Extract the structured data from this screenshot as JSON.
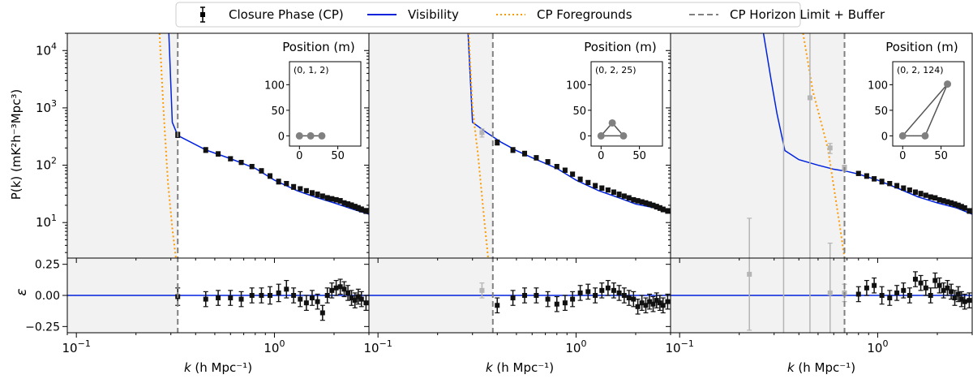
{
  "legend": {
    "placement": "top-center",
    "entries": [
      {
        "key": "cp",
        "label": "Closure Phase (CP)",
        "color": "#000000",
        "style": "square-errorbar"
      },
      {
        "key": "vis",
        "label": "Visibility",
        "color": "#0022dd",
        "style": "solid"
      },
      {
        "key": "fg",
        "label": "CP Foregrounds",
        "color": "#ff9900",
        "style": "dotted"
      },
      {
        "key": "hor",
        "label": "CP Horizon Limit + Buffer",
        "color": "#808080",
        "style": "dashed"
      }
    ]
  },
  "axes": {
    "xlabel_prefix": "k",
    "xlabel_suffix": "(h Mpc⁻¹)",
    "ylabel_top": "P(k) (mK²h⁻³Mpc³)",
    "ylabel_bottom": "ε",
    "x_range": [
      0.09,
      3.0
    ],
    "x_scale": "log",
    "y_top_range": [
      2.4,
      20000
    ],
    "y_top_scale": "log",
    "y_bottom_range": [
      -0.3,
      0.3
    ],
    "x_ticks": [
      {
        "v": 0.1,
        "base": "10",
        "exp": "−1"
      },
      {
        "v": 1,
        "base": "10",
        "exp": "0"
      }
    ],
    "y_top_ticks": [
      {
        "v": 10,
        "base": "10",
        "exp": "1"
      },
      {
        "v": 100,
        "base": "10",
        "exp": "2"
      },
      {
        "v": 1000,
        "base": "10",
        "exp": "3"
      },
      {
        "v": 10000,
        "base": "10",
        "exp": "4"
      }
    ],
    "y_bottom_ticks": [
      {
        "v": 0.25,
        "label": "0.25"
      },
      {
        "v": 0,
        "label": "0.00"
      },
      {
        "v": -0.25,
        "label": "−0.25"
      }
    ]
  },
  "chart_data": [
    {
      "type": "line",
      "inset": {
        "title": "Position (m)",
        "label": "(0, 1, 2)",
        "xticks": [
          "0",
          "50"
        ],
        "yticks": [
          "0",
          "50",
          "100"
        ],
        "points": [
          [
            0,
            0
          ],
          [
            14.6,
            0
          ],
          [
            29.2,
            0
          ]
        ],
        "closed": false
      },
      "horizon": 0.325,
      "visibility": [
        [
          0.293,
          20000
        ],
        [
          0.305,
          560
        ],
        [
          0.325,
          330
        ],
        [
          0.45,
          185
        ],
        [
          0.6,
          130
        ],
        [
          0.8,
          88
        ],
        [
          1.0,
          55
        ],
        [
          1.3,
          36
        ],
        [
          1.6,
          28
        ],
        [
          2.0,
          22
        ],
        [
          2.5,
          17
        ],
        [
          3.0,
          14
        ]
      ],
      "foreground": [
        [
          0.263,
          20000
        ],
        [
          0.275,
          1000
        ],
        [
          0.29,
          50
        ],
        [
          0.305,
          8
        ],
        [
          0.318,
          2.4
        ]
      ],
      "cp_points": [
        {
          "k": 0.325,
          "p": 340,
          "dp": 35,
          "e": -0.01,
          "de": 0.07,
          "gray": false
        },
        {
          "k": 0.45,
          "p": 185,
          "dp": 18,
          "e": -0.03,
          "de": 0.06,
          "gray": false
        },
        {
          "k": 0.52,
          "p": 158,
          "dp": 14,
          "e": -0.02,
          "de": 0.06,
          "gray": false
        },
        {
          "k": 0.6,
          "p": 130,
          "dp": 11,
          "e": -0.02,
          "de": 0.06,
          "gray": false
        },
        {
          "k": 0.68,
          "p": 112,
          "dp": 9,
          "e": -0.03,
          "de": 0.06,
          "gray": false
        },
        {
          "k": 0.77,
          "p": 95,
          "dp": 8,
          "e": 0.0,
          "de": 0.06,
          "gray": false
        },
        {
          "k": 0.86,
          "p": 80,
          "dp": 7,
          "e": 0.0,
          "de": 0.06,
          "gray": false
        },
        {
          "k": 0.95,
          "p": 65,
          "dp": 6,
          "e": 0.0,
          "de": 0.07,
          "gray": false
        },
        {
          "k": 1.05,
          "p": 52,
          "dp": 5,
          "e": 0.02,
          "de": 0.07,
          "gray": false
        },
        {
          "k": 1.15,
          "p": 48,
          "dp": 4,
          "e": 0.05,
          "de": 0.07,
          "gray": false
        },
        {
          "k": 1.25,
          "p": 42,
          "dp": 4,
          "e": 0.0,
          "de": 0.06,
          "gray": false
        },
        {
          "k": 1.35,
          "p": 39,
          "dp": 3,
          "e": -0.03,
          "de": 0.06,
          "gray": false
        },
        {
          "k": 1.45,
          "p": 36,
          "dp": 3,
          "e": -0.06,
          "de": 0.06,
          "gray": false
        },
        {
          "k": 1.55,
          "p": 33,
          "dp": 3,
          "e": -0.02,
          "de": 0.06,
          "gray": false
        },
        {
          "k": 1.65,
          "p": 31,
          "dp": 3,
          "e": -0.05,
          "de": 0.06,
          "gray": false
        },
        {
          "k": 1.75,
          "p": 29,
          "dp": 2.5,
          "e": -0.14,
          "de": 0.06,
          "gray": false
        },
        {
          "k": 1.85,
          "p": 27,
          "dp": 2.5,
          "e": 0.0,
          "de": 0.06,
          "gray": false
        },
        {
          "k": 1.95,
          "p": 26,
          "dp": 2.3,
          "e": 0.04,
          "de": 0.06,
          "gray": false
        },
        {
          "k": 2.05,
          "p": 25,
          "dp": 2.2,
          "e": 0.06,
          "de": 0.06,
          "gray": false
        },
        {
          "k": 2.15,
          "p": 24,
          "dp": 2.2,
          "e": 0.07,
          "de": 0.06,
          "gray": false
        },
        {
          "k": 2.25,
          "p": 22,
          "dp": 2,
          "e": 0.05,
          "de": 0.06,
          "gray": false
        },
        {
          "k": 2.35,
          "p": 21,
          "dp": 2,
          "e": 0.02,
          "de": 0.06,
          "gray": false
        },
        {
          "k": 2.45,
          "p": 20,
          "dp": 2,
          "e": -0.02,
          "de": 0.06,
          "gray": false
        },
        {
          "k": 2.55,
          "p": 19,
          "dp": 1.8,
          "e": -0.04,
          "de": 0.06,
          "gray": false
        },
        {
          "k": 2.65,
          "p": 18,
          "dp": 1.8,
          "e": -0.01,
          "de": 0.06,
          "gray": false
        },
        {
          "k": 2.75,
          "p": 17,
          "dp": 1.7,
          "e": -0.03,
          "de": 0.06,
          "gray": false
        },
        {
          "k": 2.9,
          "p": 16,
          "dp": 1.6,
          "e": -0.06,
          "de": 0.06,
          "gray": false
        }
      ]
    },
    {
      "type": "line",
      "inset": {
        "title": "Position (m)",
        "label": "(0, 2, 25)",
        "xticks": [
          "0",
          "50"
        ],
        "yticks": [
          "0",
          "50",
          "100"
        ],
        "points": [
          [
            0,
            0
          ],
          [
            29.2,
            0
          ],
          [
            14.6,
            25.3
          ]
        ],
        "closed": true
      },
      "horizon": 0.38,
      "visibility": [
        [
          0.285,
          20000
        ],
        [
          0.3,
          560
        ],
        [
          0.35,
          380
        ],
        [
          0.42,
          250
        ],
        [
          0.5,
          180
        ],
        [
          0.6,
          135
        ],
        [
          0.8,
          88
        ],
        [
          1.0,
          55
        ],
        [
          1.3,
          36
        ],
        [
          1.6,
          28
        ],
        [
          2.0,
          21
        ],
        [
          2.5,
          18
        ],
        [
          3.0,
          15
        ]
      ],
      "foreground": [
        [
          0.287,
          20000
        ],
        [
          0.3,
          1000
        ],
        [
          0.32,
          150
        ],
        [
          0.345,
          10
        ],
        [
          0.36,
          2.4
        ]
      ],
      "cp_points": [
        {
          "k": 0.335,
          "p": 370,
          "dp": 60,
          "e": 0.04,
          "de": 0.06,
          "gray": true
        },
        {
          "k": 0.4,
          "p": 250,
          "dp": 25,
          "e": -0.08,
          "de": 0.06,
          "gray": false
        },
        {
          "k": 0.48,
          "p": 185,
          "dp": 18,
          "e": -0.02,
          "de": 0.06,
          "gray": false
        },
        {
          "k": 0.55,
          "p": 160,
          "dp": 15,
          "e": 0.0,
          "de": 0.06,
          "gray": false
        },
        {
          "k": 0.63,
          "p": 135,
          "dp": 12,
          "e": 0.0,
          "de": 0.06,
          "gray": false
        },
        {
          "k": 0.72,
          "p": 115,
          "dp": 10,
          "e": -0.03,
          "de": 0.06,
          "gray": false
        },
        {
          "k": 0.8,
          "p": 95,
          "dp": 8,
          "e": -0.07,
          "de": 0.06,
          "gray": false
        },
        {
          "k": 0.88,
          "p": 82,
          "dp": 7,
          "e": -0.06,
          "de": 0.06,
          "gray": false
        },
        {
          "k": 0.96,
          "p": 70,
          "dp": 6,
          "e": -0.03,
          "de": 0.06,
          "gray": false
        },
        {
          "k": 1.05,
          "p": 57,
          "dp": 5,
          "e": 0.02,
          "de": 0.06,
          "gray": false
        },
        {
          "k": 1.15,
          "p": 50,
          "dp": 4,
          "e": 0.03,
          "de": 0.06,
          "gray": false
        },
        {
          "k": 1.25,
          "p": 44,
          "dp": 4,
          "e": 0.0,
          "de": 0.06,
          "gray": false
        },
        {
          "k": 1.35,
          "p": 40,
          "dp": 3.5,
          "e": 0.04,
          "de": 0.06,
          "gray": false
        },
        {
          "k": 1.45,
          "p": 37,
          "dp": 3,
          "e": 0.06,
          "de": 0.06,
          "gray": false
        },
        {
          "k": 1.55,
          "p": 34,
          "dp": 3,
          "e": 0.04,
          "de": 0.06,
          "gray": false
        },
        {
          "k": 1.65,
          "p": 31,
          "dp": 3,
          "e": 0.02,
          "de": 0.06,
          "gray": false
        },
        {
          "k": 1.75,
          "p": 29,
          "dp": 2.5,
          "e": 0.0,
          "de": 0.06,
          "gray": false
        },
        {
          "k": 1.85,
          "p": 27,
          "dp": 2.4,
          "e": -0.02,
          "de": 0.06,
          "gray": false
        },
        {
          "k": 1.95,
          "p": 25,
          "dp": 2.2,
          "e": -0.03,
          "de": 0.06,
          "gray": false
        },
        {
          "k": 2.05,
          "p": 24,
          "dp": 2.1,
          "e": -0.09,
          "de": 0.06,
          "gray": false
        },
        {
          "k": 2.15,
          "p": 23,
          "dp": 2,
          "e": -0.06,
          "de": 0.06,
          "gray": false
        },
        {
          "k": 2.25,
          "p": 22,
          "dp": 2,
          "e": -0.08,
          "de": 0.06,
          "gray": false
        },
        {
          "k": 2.35,
          "p": 21,
          "dp": 1.9,
          "e": -0.05,
          "de": 0.06,
          "gray": false
        },
        {
          "k": 2.45,
          "p": 20,
          "dp": 1.8,
          "e": -0.07,
          "de": 0.06,
          "gray": false
        },
        {
          "k": 2.55,
          "p": 19,
          "dp": 1.8,
          "e": -0.04,
          "de": 0.06,
          "gray": false
        },
        {
          "k": 2.65,
          "p": 18,
          "dp": 1.7,
          "e": -0.06,
          "de": 0.06,
          "gray": false
        },
        {
          "k": 2.75,
          "p": 17,
          "dp": 1.6,
          "e": -0.08,
          "de": 0.06,
          "gray": false
        },
        {
          "k": 2.9,
          "p": 16,
          "dp": 1.5,
          "e": -0.05,
          "de": 0.06,
          "gray": false
        }
      ]
    },
    {
      "type": "line",
      "inset": {
        "title": "Position (m)",
        "label": "(0, 2, 124)",
        "xticks": [
          "0",
          "50"
        ],
        "yticks": [
          "0",
          "50",
          "100"
        ],
        "points": [
          [
            0,
            0
          ],
          [
            29.2,
            0
          ],
          [
            58.4,
            101.2
          ]
        ],
        "closed": true
      },
      "horizon": 0.68,
      "visibility": [
        [
          0.265,
          20000
        ],
        [
          0.29,
          3000
        ],
        [
          0.31,
          800
        ],
        [
          0.34,
          180
        ],
        [
          0.4,
          125
        ],
        [
          0.5,
          100
        ],
        [
          0.6,
          85
        ],
        [
          0.7,
          78
        ],
        [
          0.8,
          70
        ],
        [
          1.0,
          55
        ],
        [
          1.3,
          38
        ],
        [
          1.6,
          28
        ],
        [
          2.0,
          22
        ],
        [
          2.5,
          18
        ],
        [
          3.0,
          14
        ]
      ],
      "foreground": [
        [
          0.42,
          20000
        ],
        [
          0.47,
          2000
        ],
        [
          0.56,
          200
        ],
        [
          0.64,
          10
        ],
        [
          0.68,
          2.4
        ]
      ],
      "cp_points": [
        {
          "k": 0.225,
          "p": 1,
          "dp": 0,
          "e": 0.17,
          "de": 0.45,
          "gray": true
        },
        {
          "k": 0.335,
          "p": 1,
          "dp": 0,
          "e": 0.0,
          "de": 0.0,
          "gray": true,
          "errTopOnly": true
        },
        {
          "k": 0.455,
          "p": 1500,
          "dp": 7000,
          "e": 0.0,
          "de": 0.0,
          "gray": true,
          "fullBar": true
        },
        {
          "k": 0.575,
          "p": 200,
          "dp": 40,
          "e": 0.02,
          "de": 0.4,
          "gray": true
        },
        {
          "k": 0.68,
          "p": 90,
          "dp": 10,
          "e": 0.02,
          "de": 0.07,
          "gray": true
        },
        {
          "k": 0.8,
          "p": 72,
          "dp": 6,
          "e": 0.01,
          "de": 0.06,
          "gray": false
        },
        {
          "k": 0.88,
          "p": 65,
          "dp": 6,
          "e": 0.06,
          "de": 0.06,
          "gray": false
        },
        {
          "k": 0.96,
          "p": 58,
          "dp": 5,
          "e": 0.08,
          "de": 0.06,
          "gray": false
        },
        {
          "k": 1.05,
          "p": 52,
          "dp": 5,
          "e": 0.0,
          "de": 0.07,
          "gray": false
        },
        {
          "k": 1.15,
          "p": 48,
          "dp": 4,
          "e": -0.02,
          "de": 0.06,
          "gray": false
        },
        {
          "k": 1.25,
          "p": 44,
          "dp": 4,
          "e": 0.02,
          "de": 0.06,
          "gray": false
        },
        {
          "k": 1.35,
          "p": 40,
          "dp": 3.5,
          "e": 0.04,
          "de": 0.06,
          "gray": false
        },
        {
          "k": 1.45,
          "p": 37,
          "dp": 3,
          "e": 0.0,
          "de": 0.06,
          "gray": false
        },
        {
          "k": 1.55,
          "p": 34,
          "dp": 3,
          "e": 0.13,
          "de": 0.06,
          "gray": false
        },
        {
          "k": 1.65,
          "p": 32,
          "dp": 3,
          "e": 0.1,
          "de": 0.06,
          "gray": false
        },
        {
          "k": 1.75,
          "p": 30,
          "dp": 2.5,
          "e": 0.06,
          "de": 0.06,
          "gray": false
        },
        {
          "k": 1.85,
          "p": 28,
          "dp": 2.4,
          "e": 0.0,
          "de": 0.06,
          "gray": false
        },
        {
          "k": 1.95,
          "p": 27,
          "dp": 2.3,
          "e": 0.12,
          "de": 0.06,
          "gray": false
        },
        {
          "k": 2.05,
          "p": 25,
          "dp": 2.2,
          "e": 0.08,
          "de": 0.06,
          "gray": false
        },
        {
          "k": 2.15,
          "p": 24,
          "dp": 2.1,
          "e": 0.04,
          "de": 0.06,
          "gray": false
        },
        {
          "k": 2.25,
          "p": 23,
          "dp": 2,
          "e": 0.06,
          "de": 0.06,
          "gray": false
        },
        {
          "k": 2.35,
          "p": 22,
          "dp": 2,
          "e": 0.03,
          "de": 0.06,
          "gray": false
        },
        {
          "k": 2.45,
          "p": 21,
          "dp": 1.9,
          "e": -0.02,
          "de": 0.06,
          "gray": false
        },
        {
          "k": 2.55,
          "p": 20,
          "dp": 1.8,
          "e": 0.01,
          "de": 0.06,
          "gray": false
        },
        {
          "k": 2.65,
          "p": 19,
          "dp": 1.7,
          "e": -0.03,
          "de": 0.06,
          "gray": false
        },
        {
          "k": 2.75,
          "p": 18,
          "dp": 1.6,
          "e": -0.05,
          "de": 0.06,
          "gray": false
        },
        {
          "k": 2.9,
          "p": 16,
          "dp": 1.5,
          "e": -0.04,
          "de": 0.06,
          "gray": false
        }
      ]
    }
  ]
}
